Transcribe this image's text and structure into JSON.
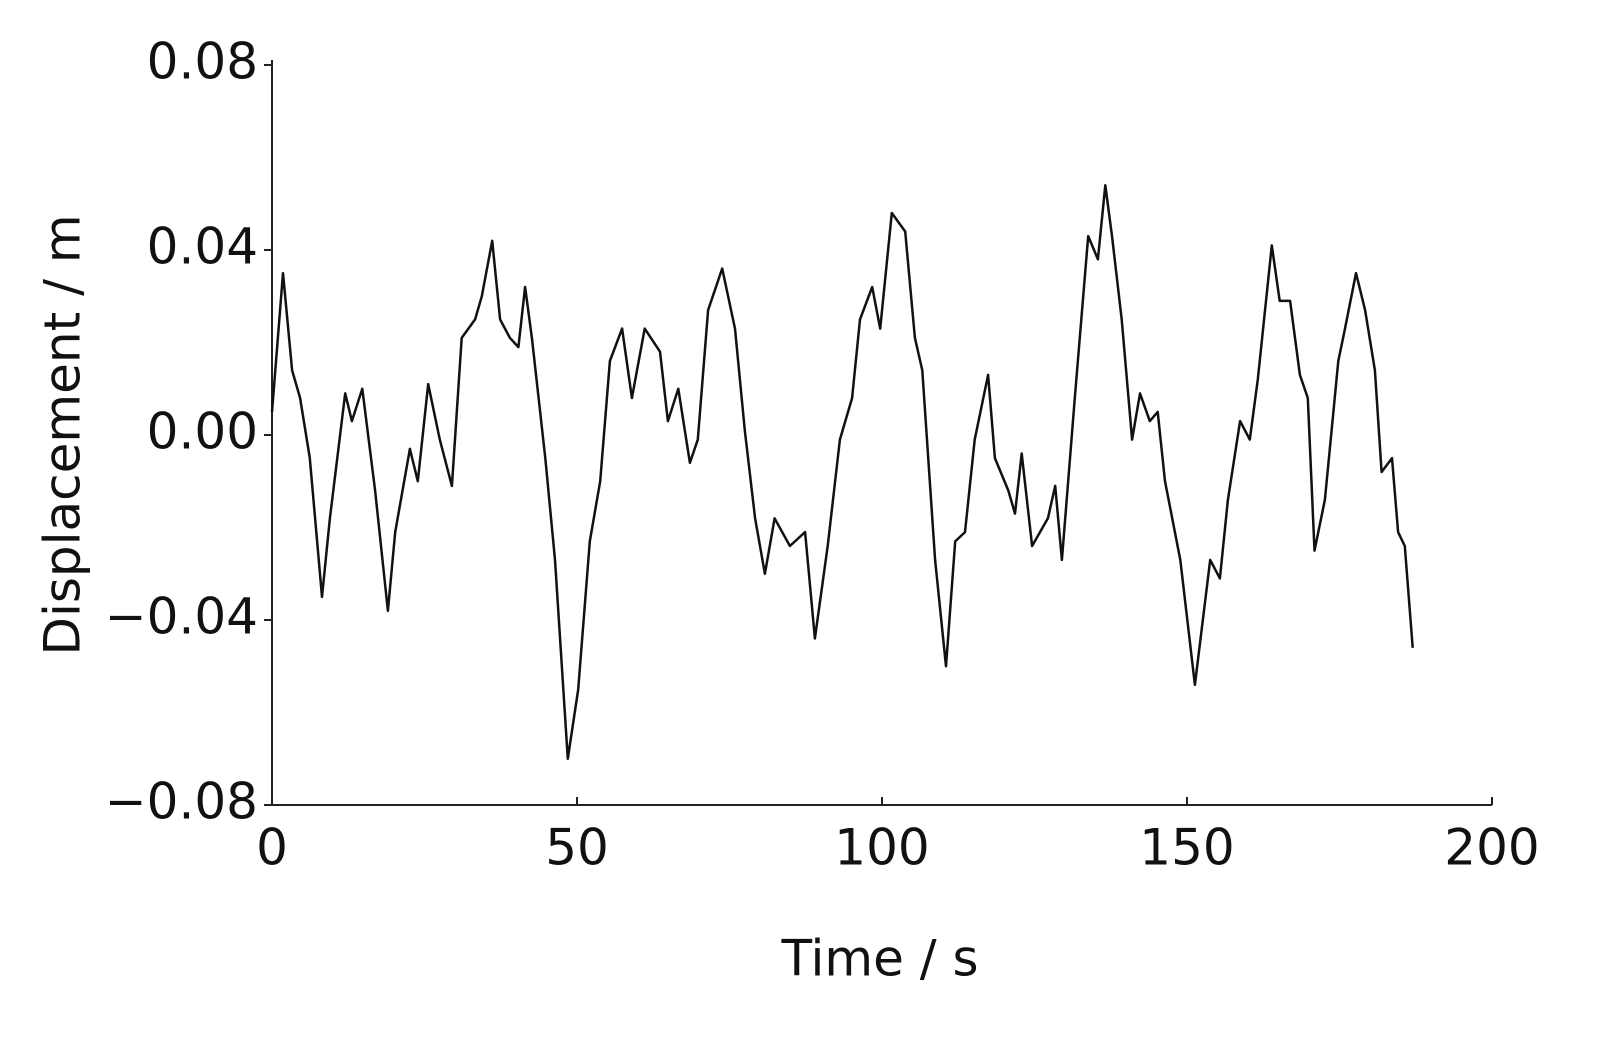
{
  "chart_data": {
    "type": "line",
    "x_label": "Time / s",
    "y_label": "Displacement / m",
    "x": [
      0,
      1.8,
      3.3,
      4.6,
      6.2,
      8.2,
      9.5,
      12,
      13.1,
      14.8,
      16.9,
      19,
      20.2,
      22.6,
      23.9,
      25.6,
      27.5,
      29.5,
      31.1,
      33.3,
      34.4,
      36.1,
      37.4,
      39,
      40.4,
      41.5,
      42.6,
      44.8,
      46.4,
      48.5,
      50.2,
      52.1,
      53.8,
      55.4,
      57.4,
      59,
      61.1,
      63.6,
      64.9,
      66.6,
      68.5,
      69.8,
      71.5,
      73.8,
      75.9,
      77.5,
      79.2,
      80.8,
      82.4,
      84.9,
      87.4,
      89,
      91.1,
      93.1,
      95.1,
      96.4,
      98.4,
      99.7,
      101.6,
      103.8,
      105.4,
      106.6,
      108.7,
      110.5,
      112,
      113.6,
      115.2,
      117.4,
      118.5,
      120.7,
      121.8,
      122.9,
      124.6,
      127.2,
      128.4,
      129.5,
      131.6,
      133.8,
      135.4,
      136.6,
      137.7,
      139.3,
      141,
      142.3,
      143.9,
      145.2,
      146.4,
      148.9,
      151.3,
      153.8,
      155.4,
      156.7,
      158.7,
      160.3,
      161.6,
      163.9,
      165.2,
      166.9,
      168.5,
      169.8,
      170.9,
      172.6,
      174.8,
      175.9,
      177.7,
      179.2,
      180.8,
      181.9,
      183.6,
      184.6,
      185.7,
      187
    ],
    "values": [
      0.005,
      0.035,
      0.014,
      0.008,
      -0.005,
      -0.035,
      -0.018,
      0.009,
      0.003,
      0.01,
      -0.012,
      -0.038,
      -0.021,
      -0.003,
      -0.01,
      0.011,
      -0.001,
      -0.011,
      0.021,
      0.025,
      0.03,
      0.042,
      0.025,
      0.021,
      0.019,
      0.032,
      0.021,
      -0.005,
      -0.027,
      -0.07,
      -0.055,
      -0.023,
      -0.01,
      0.016,
      0.023,
      0.008,
      0.023,
      0.018,
      0.003,
      0.01,
      -0.006,
      -0.001,
      0.027,
      0.036,
      0.023,
      0.001,
      -0.018,
      -0.03,
      -0.018,
      -0.024,
      -0.021,
      -0.044,
      -0.024,
      -0.001,
      0.008,
      0.025,
      0.032,
      0.023,
      0.048,
      0.044,
      0.021,
      0.014,
      -0.027,
      -0.05,
      -0.023,
      -0.021,
      -0.001,
      0.013,
      -0.005,
      -0.012,
      -0.017,
      -0.004,
      -0.024,
      -0.018,
      -0.011,
      -0.027,
      0.008,
      0.043,
      0.038,
      0.054,
      0.043,
      0.025,
      -0.001,
      0.009,
      0.003,
      0.005,
      -0.01,
      -0.027,
      -0.054,
      -0.027,
      -0.031,
      -0.014,
      0.003,
      -0.001,
      0.012,
      0.041,
      0.029,
      0.029,
      0.013,
      0.008,
      -0.025,
      -0.014,
      0.016,
      0.023,
      0.035,
      0.027,
      0.014,
      -0.008,
      -0.005,
      -0.021,
      -0.024,
      -0.046
    ],
    "color": "#111111",
    "xlim": [
      0,
      200
    ],
    "xticks": [
      0,
      50,
      100,
      150,
      200
    ],
    "ylim": [
      -0.08,
      0.08
    ],
    "yticks": [
      {
        "value": -0.08,
        "label": "−0.08"
      },
      {
        "value": -0.04,
        "label": "−0.04"
      },
      {
        "value": 0,
        "label": "0.00"
      },
      0.04,
      0.08
    ]
  }
}
